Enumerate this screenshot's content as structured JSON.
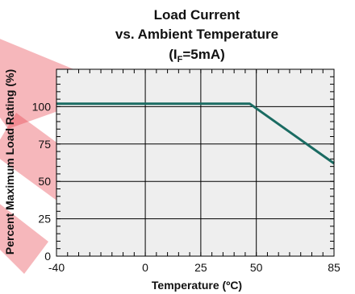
{
  "chart_data": {
    "type": "line",
    "title_line1": "Load Current",
    "title_line2": "vs. Ambient Temperature",
    "title_line3_prefix": "(I",
    "title_line3_sub": "F",
    "title_line3_suffix": "=5mA)",
    "xlabel": "Temperature (ºC)",
    "ylabel": "Percent Maximum Load Rating (%)",
    "xlim": [
      -40,
      85
    ],
    "ylim": [
      0,
      125
    ],
    "x_ticks": [
      -40,
      0,
      25,
      50,
      85
    ],
    "x_tick_labels": [
      "-40",
      "0",
      "25",
      "50",
      "85"
    ],
    "y_ticks": [
      0,
      25,
      50,
      75,
      100
    ],
    "y_tick_labels": [
      "0",
      "25",
      "50",
      "75",
      "100"
    ],
    "x_minor_step": 5,
    "y_minor_step": 5,
    "grid": true,
    "plot_background": "#eeeeee",
    "series": [
      {
        "color": "#1a6b62",
        "x": [
          -40,
          47,
          85
        ],
        "y": [
          102,
          102,
          62
        ]
      }
    ],
    "watermark_color": "#e8434d"
  }
}
